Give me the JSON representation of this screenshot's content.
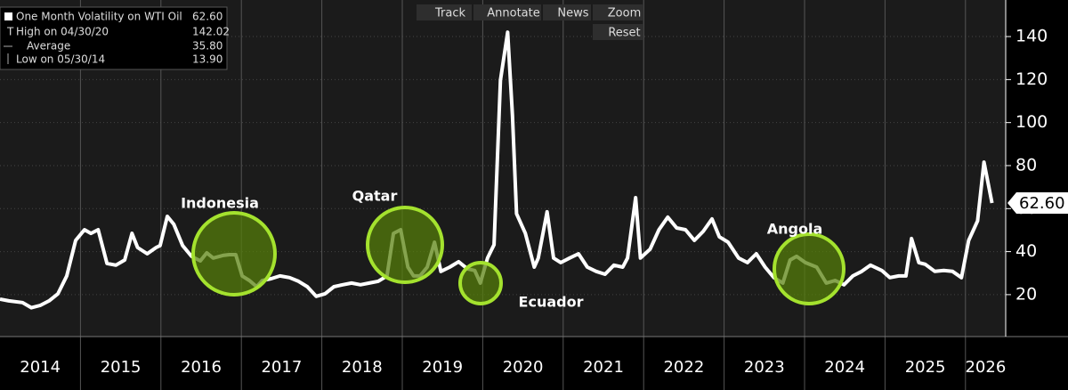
{
  "chart_data": {
    "type": "line",
    "legend": [
      {
        "label": "One Month Volatility on WTI Oil",
        "value": "62.60"
      },
      {
        "label": "High on 04/30/20",
        "value": "142.02"
      },
      {
        "label": "Average",
        "value": "35.80"
      },
      {
        "label": "Low on 05/30/14",
        "value": "13.90"
      }
    ],
    "toolbar": [
      "Track",
      "Annotate",
      "News",
      "Zoom",
      "Reset"
    ],
    "annotations": [
      "Indonesia",
      "Qatar",
      "Ecuador",
      "Angola"
    ],
    "color": "#ffffff",
    "x": [
      2014.0,
      2014.11,
      2014.28,
      2014.39,
      2014.5,
      2014.61,
      2014.72,
      2014.83,
      2014.94,
      2015.05,
      2015.13,
      2015.22,
      2015.33,
      2015.44,
      2015.55,
      2015.64,
      2015.71,
      2015.83,
      2015.94,
      2015.99,
      2016.08,
      2016.16,
      2016.27,
      2016.38,
      2016.49,
      2016.57,
      2016.65,
      2016.77,
      2016.85,
      2016.93,
      2017.01,
      2017.1,
      2017.19,
      2017.26,
      2017.37,
      2017.48,
      2017.6,
      2017.71,
      2017.82,
      2017.93,
      2018.04,
      2018.15,
      2018.26,
      2018.37,
      2018.48,
      2018.59,
      2018.7,
      2018.81,
      2018.89,
      2018.98,
      2019.07,
      2019.14,
      2019.22,
      2019.31,
      2019.4,
      2019.48,
      2019.59,
      2019.7,
      2019.81,
      2019.9,
      2019.97,
      2020.06,
      2020.14,
      2020.22,
      2020.31,
      2020.37,
      2020.42,
      2020.53,
      2020.64,
      2020.69,
      2020.8,
      2020.88,
      2020.97,
      2021.08,
      2021.19,
      2021.3,
      2021.41,
      2021.52,
      2021.63,
      2021.74,
      2021.8,
      2021.9,
      2021.96,
      2022.08,
      2022.19,
      2022.3,
      2022.41,
      2022.52,
      2022.63,
      2022.74,
      2022.85,
      2022.94,
      2023.05,
      2023.18,
      2023.29,
      2023.4,
      2023.51,
      2023.62,
      2023.73,
      2023.82,
      2023.9,
      2024.01,
      2024.15,
      2024.27,
      2024.38,
      2024.49,
      2024.6,
      2024.71,
      2024.82,
      2024.96,
      2025.06,
      2025.17,
      2025.26,
      2025.33,
      2025.42,
      2025.5,
      2025.62,
      2025.73,
      2025.84,
      2025.95,
      2026.04,
      2026.15,
      2026.23,
      2026.33
    ],
    "values": [
      17.9,
      17.1,
      16.3,
      13.9,
      15.0,
      17.1,
      20.4,
      28.7,
      45.2,
      50.2,
      48.5,
      50.2,
      34.5,
      33.7,
      36.1,
      48.5,
      41.9,
      39.0,
      41.9,
      42.8,
      56.4,
      52.7,
      42.8,
      37.8,
      35.7,
      39.4,
      37.0,
      38.2,
      38.6,
      38.6,
      28.7,
      26.6,
      23.7,
      26.6,
      27.4,
      28.7,
      27.9,
      26.2,
      23.7,
      19.2,
      20.4,
      23.7,
      24.6,
      25.4,
      24.6,
      25.4,
      26.2,
      28.7,
      48.5,
      50.2,
      32.8,
      28.7,
      28.7,
      32.8,
      44.4,
      30.8,
      32.8,
      35.3,
      32.0,
      31.2,
      25.4,
      37.0,
      43.2,
      119.7,
      142.02,
      103.2,
      57.6,
      48.5,
      32.8,
      37.0,
      58.5,
      37.0,
      34.9,
      37.0,
      39.0,
      32.8,
      30.8,
      29.5,
      33.7,
      32.8,
      37.0,
      65.1,
      37.0,
      41.1,
      50.2,
      56.0,
      51.0,
      50.2,
      45.2,
      49.4,
      55.2,
      46.9,
      44.4,
      37.0,
      34.9,
      39.0,
      32.8,
      27.9,
      25.4,
      36.1,
      37.8,
      34.9,
      32.8,
      25.4,
      26.6,
      24.6,
      28.7,
      30.8,
      33.7,
      31.2,
      27.9,
      28.7,
      28.7,
      46.1,
      34.9,
      34.1,
      30.8,
      31.2,
      30.8,
      27.9,
      45.2,
      54.3,
      81.6,
      62.6
    ],
    "last_value": {
      "value": 62.6,
      "label": "62.60"
    },
    "xlim": [
      2014,
      2026.5
    ],
    "xticks": [
      2014,
      2015,
      2016,
      2017,
      2018,
      2019,
      2020,
      2021,
      2022,
      2023,
      2024,
      2025,
      2026
    ],
    "ylim": [
      0.5,
      157
    ],
    "yticks": [
      20,
      40,
      60,
      80,
      100,
      120,
      140
    ],
    "grid": true
  }
}
